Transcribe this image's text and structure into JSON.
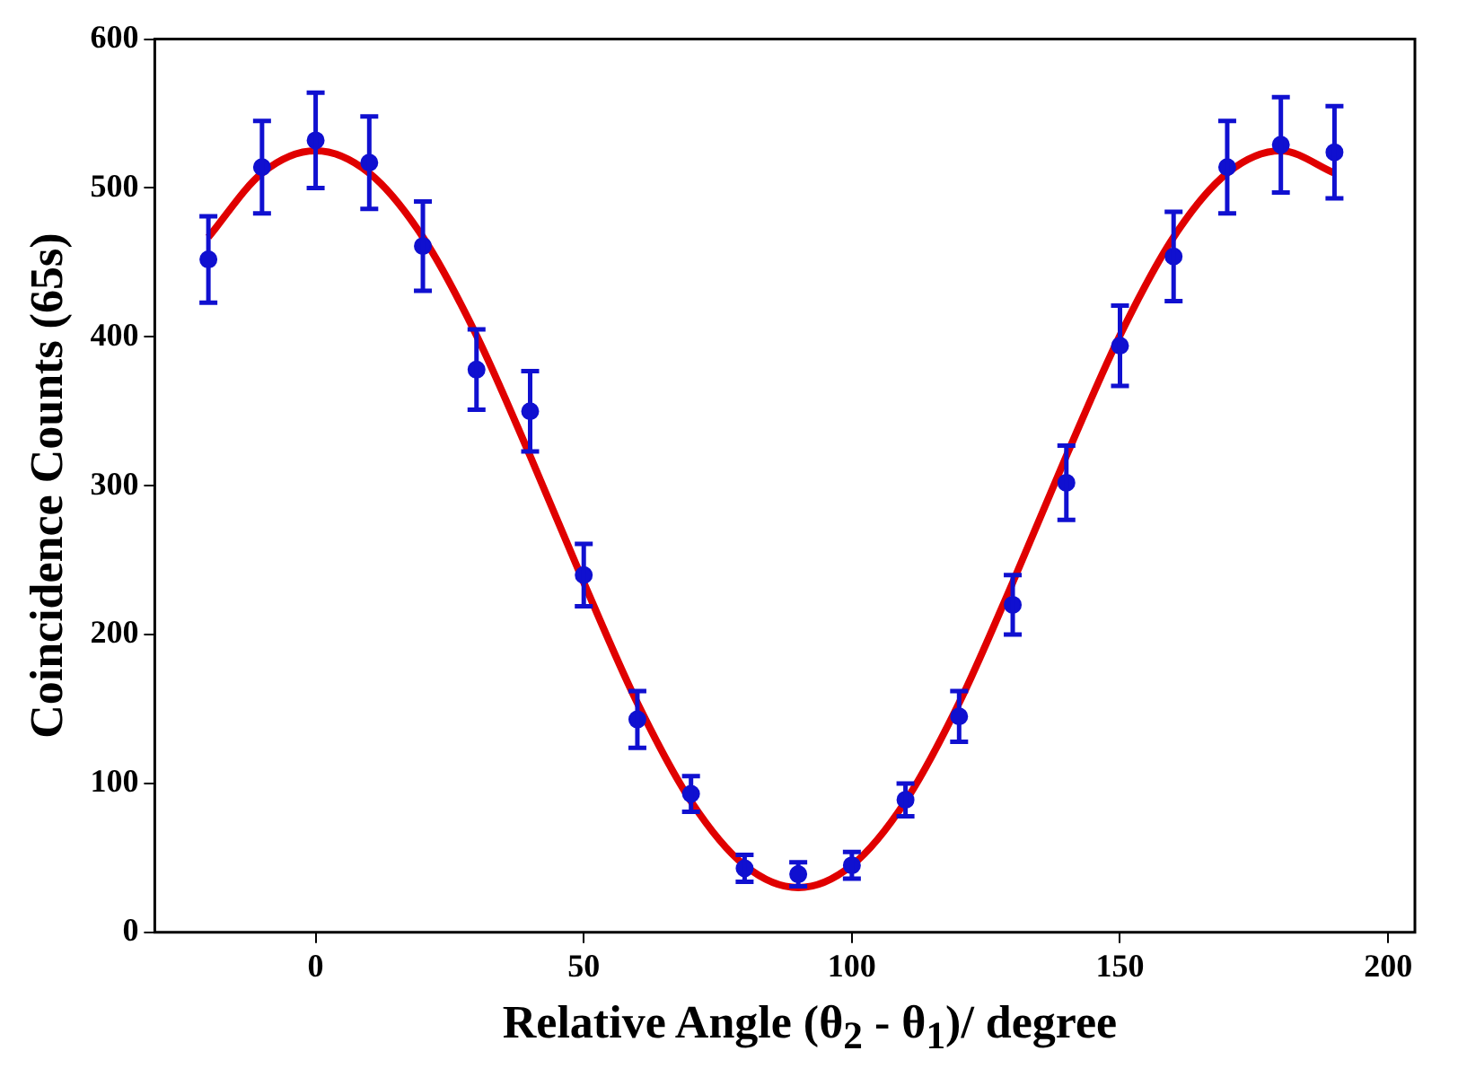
{
  "chart_data": {
    "type": "scatter",
    "xlabel": "Relative Angle (θ$_{2}$ - θ$_{1}$)/ degree",
    "ylabel": "Coincidence Counts (65s)",
    "xlim": [
      -30,
      205
    ],
    "xticks": [
      0,
      50,
      100,
      150,
      200
    ],
    "ylim": [
      0,
      600
    ],
    "yticks": [
      0,
      100,
      200,
      300,
      400,
      500,
      600
    ],
    "grid": false,
    "legend": false,
    "series": [
      {
        "type": "scatter",
        "marker": "circle",
        "color": "#1010d0",
        "x": [
          -20,
          -10,
          0,
          10,
          20,
          30,
          40,
          50,
          60,
          70,
          80,
          90,
          100,
          110,
          120,
          130,
          140,
          150,
          160,
          170,
          180,
          190
        ],
        "values": [
          452,
          514,
          532,
          517,
          461,
          378,
          350,
          240,
          143,
          93,
          43,
          39,
          45,
          89,
          145,
          220,
          302,
          394,
          454,
          514,
          529,
          524
        ],
        "errors": [
          29,
          31,
          32,
          31,
          30,
          27,
          27,
          21,
          19,
          12,
          9,
          8,
          9,
          11,
          17,
          20,
          25,
          27,
          30,
          31,
          32,
          31
        ]
      },
      {
        "type": "line",
        "marker": "none",
        "color": "#e00000",
        "line_style": "solid",
        "x": [
          -20,
          -10,
          0,
          10,
          20,
          30,
          40,
          50,
          60,
          70,
          80,
          90,
          100,
          110,
          120,
          130,
          140,
          150,
          160,
          170,
          180,
          190
        ],
        "values": [
          467,
          510,
          525,
          510,
          467,
          401,
          320,
          235,
          154,
          88,
          45,
          30,
          45,
          88,
          154,
          235,
          320,
          401,
          467,
          510,
          525,
          510
        ]
      }
    ]
  }
}
